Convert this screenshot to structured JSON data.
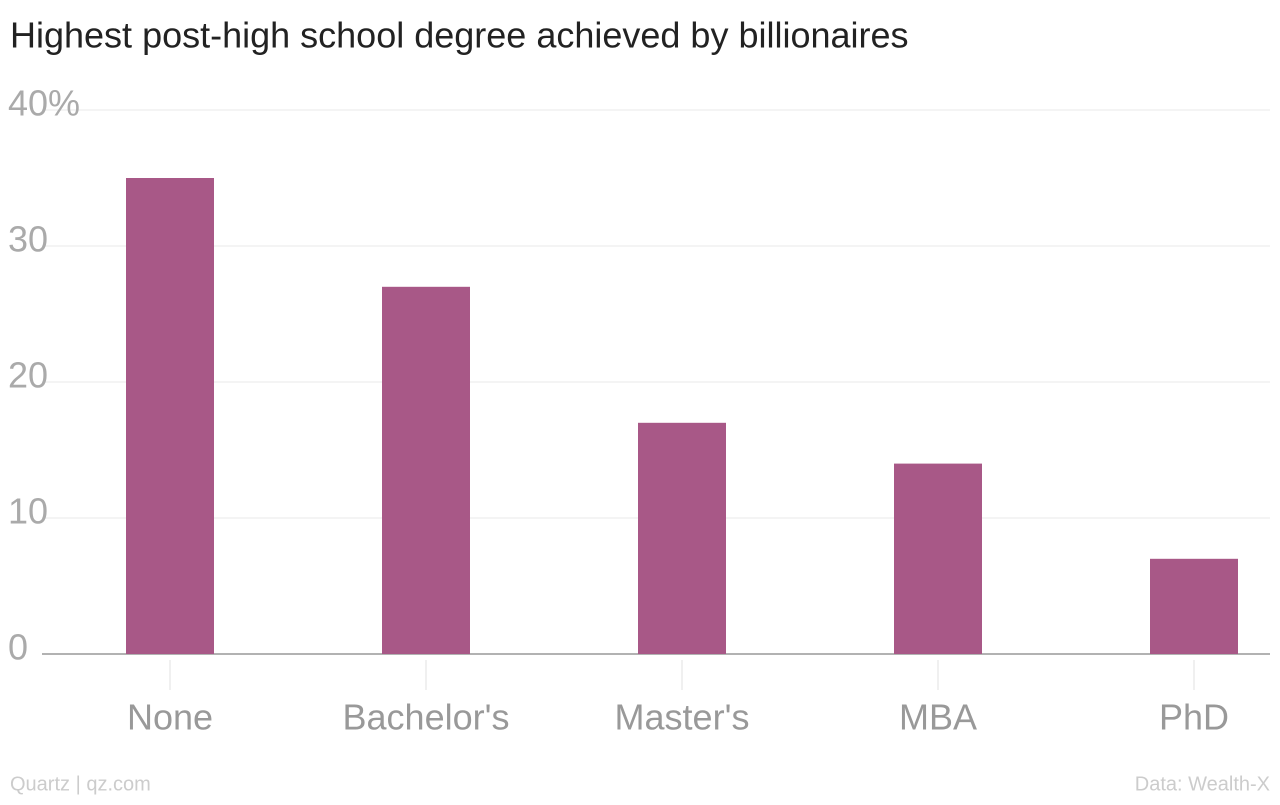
{
  "chart_data": {
    "type": "bar",
    "title": "Highest post-high school degree achieved by billionaires",
    "categories": [
      "None",
      "Bachelor's",
      "Master's",
      "MBA",
      "PhD"
    ],
    "values": [
      35,
      27,
      17,
      14,
      7
    ],
    "color": "#a85887",
    "ylim": [
      0,
      40
    ],
    "yticks": [
      0,
      10,
      20,
      30,
      {
        "value": 40,
        "label": "40%"
      }
    ],
    "grid": true,
    "source_left": "Quartz | qz.com",
    "source_right": "Data: Wealth-X"
  }
}
